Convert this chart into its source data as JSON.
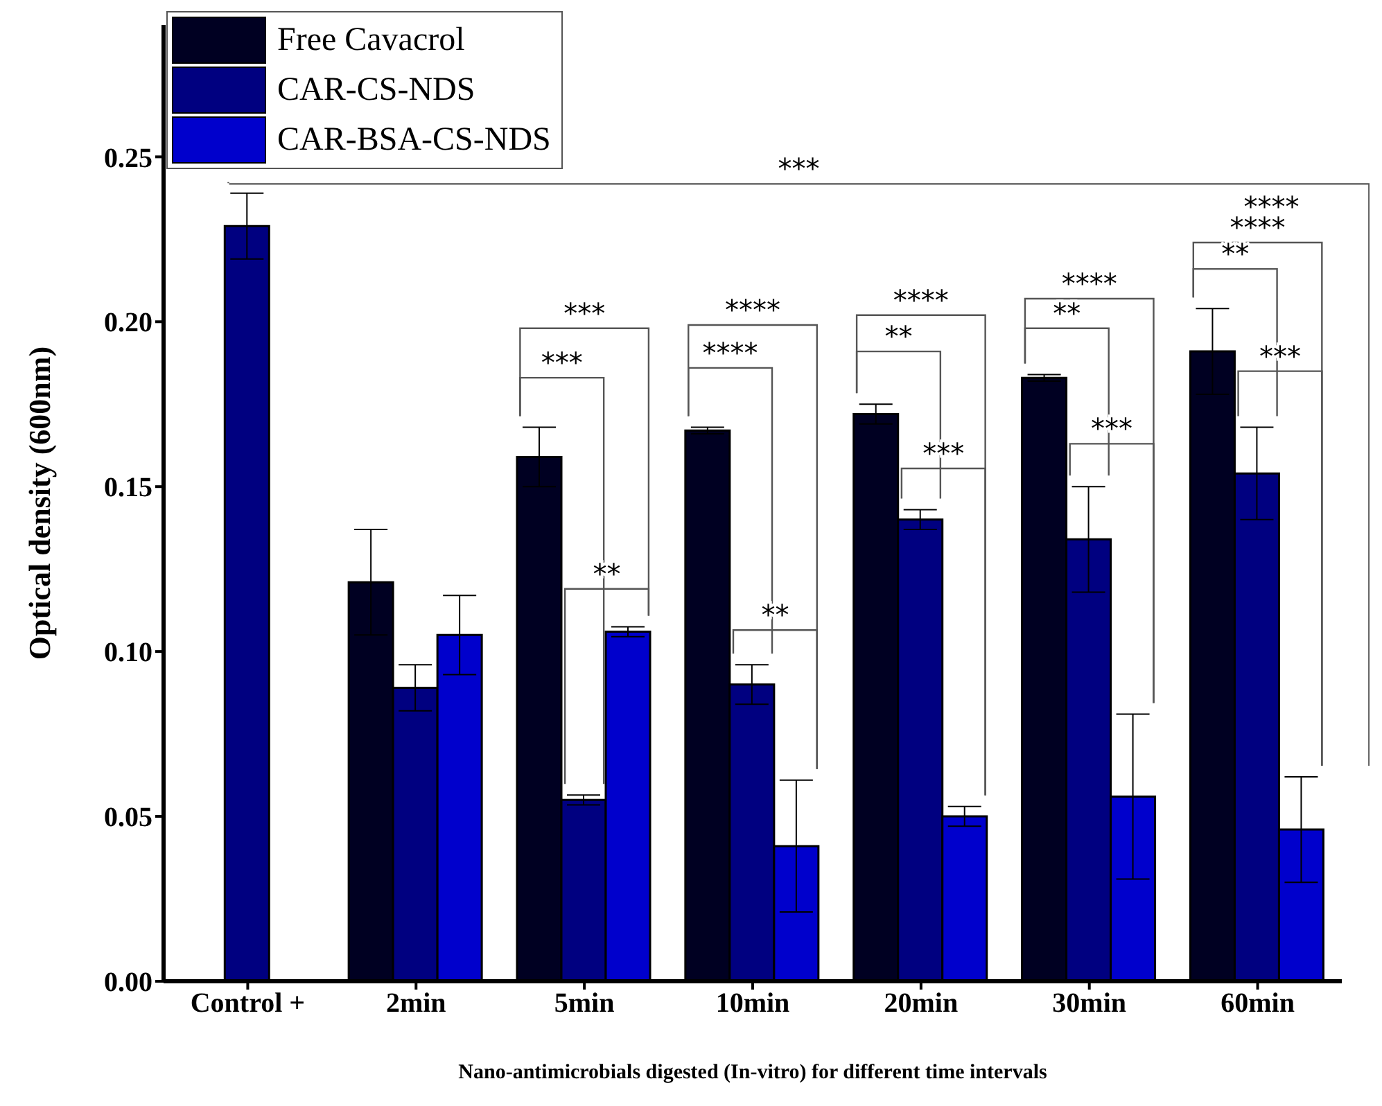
{
  "chart_data": {
    "type": "bar",
    "xlabel": "Nano-antimicrobials digested (In-vitro) for different time intervals",
    "ylabel": "Optical density (600nm)",
    "categories": [
      "Control +",
      "2min",
      "5min",
      "10min",
      "20min",
      "30min",
      "60min"
    ],
    "series": [
      {
        "name": "Free Cavacrol",
        "color": "#000022",
        "values": [
          null,
          0.121,
          0.159,
          0.167,
          0.172,
          0.183,
          0.191
        ],
        "errors": [
          null,
          0.016,
          0.009,
          0.001,
          0.003,
          0.001,
          0.013
        ]
      },
      {
        "name": "CAR-CS-NDS",
        "color": "#000080",
        "values": [
          0.229,
          0.089,
          0.055,
          0.09,
          0.14,
          0.134,
          0.154
        ],
        "errors": [
          0.01,
          0.007,
          0.0015,
          0.006,
          0.003,
          0.016,
          0.014
        ]
      },
      {
        "name": "CAR-BSA-CS-NDS",
        "color": "#0000cc",
        "values": [
          null,
          0.105,
          0.106,
          0.041,
          0.05,
          0.056,
          0.046
        ],
        "errors": [
          null,
          0.012,
          0.0015,
          0.02,
          0.003,
          0.025,
          0.016
        ]
      }
    ],
    "ylim": [
      0,
      0.29
    ],
    "yticks": [
      {
        "value": 0,
        "label": "0.00"
      },
      {
        "value": 0.05,
        "label": "0.05"
      },
      {
        "value": 0.1,
        "label": "0.10"
      },
      {
        "value": 0.15,
        "label": "0.15"
      },
      {
        "value": 0.2,
        "label": "0.20"
      },
      {
        "value": 0.25,
        "label": "0.25"
      }
    ],
    "grid": false,
    "legend": "top left",
    "annotations": [
      "***",
      "****",
      "***",
      "***",
      "**",
      "****",
      "****",
      "**",
      "****",
      "**",
      "***",
      "****",
      "**",
      "***",
      "****",
      "**",
      "***"
    ]
  }
}
